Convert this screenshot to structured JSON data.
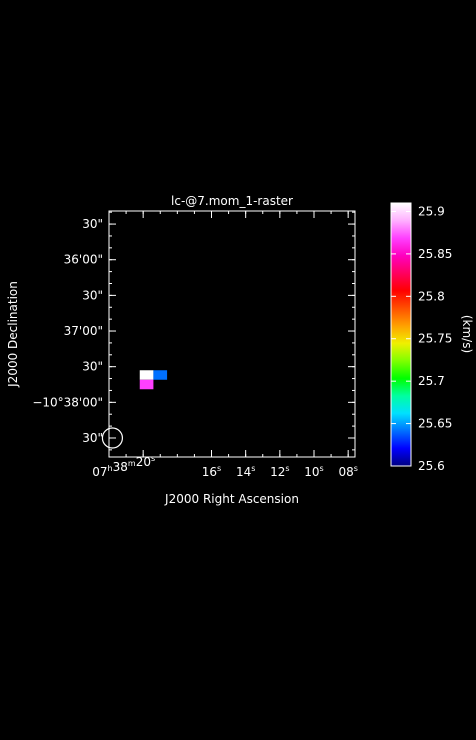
{
  "chart_data": {
    "type": "heatmap",
    "title": "lc-@7.mom_1-raster",
    "xlabel": "J2000 Right Ascension",
    "ylabel": "J2000 Declination",
    "x_ticks": [
      {
        "ra_sec": 20,
        "label_main": "07",
        "label_parts": [
          {
            "t": "h",
            "sup": true
          },
          {
            "t": "38",
            "sup": false
          },
          {
            "t": "m",
            "sup": true
          },
          {
            "t": "20",
            "sup": false
          },
          {
            "t": "s",
            "sup": true
          }
        ]
      },
      {
        "ra_sec": 16,
        "label_parts": [
          {
            "t": "16",
            "sup": false
          },
          {
            "t": "s",
            "sup": true
          }
        ]
      },
      {
        "ra_sec": 14,
        "label_parts": [
          {
            "t": "14",
            "sup": false
          },
          {
            "t": "s",
            "sup": true
          }
        ]
      },
      {
        "ra_sec": 12,
        "label_parts": [
          {
            "t": "12",
            "sup": false
          },
          {
            "t": "s",
            "sup": true
          }
        ]
      },
      {
        "ra_sec": 10,
        "label_parts": [
          {
            "t": "10",
            "sup": false
          },
          {
            "t": "s",
            "sup": true
          }
        ]
      },
      {
        "ra_sec": 8,
        "label_parts": [
          {
            "t": "08",
            "sup": false
          },
          {
            "t": "s",
            "sup": true
          }
        ]
      }
    ],
    "y_ticks": [
      {
        "dec_arcsec": 150,
        "label": "30\""
      },
      {
        "dec_arcsec": 120,
        "label": "36'00\""
      },
      {
        "dec_arcsec": 90,
        "label": "30\""
      },
      {
        "dec_arcsec": 60,
        "label": "37'00\""
      },
      {
        "dec_arcsec": 30,
        "label": "30\""
      },
      {
        "dec_arcsec": 0,
        "label": "−10°38'00\""
      },
      {
        "dec_arcsec": -30,
        "label": "30\""
      }
    ],
    "xlim_ra_sec": [
      22.0,
      7.6
    ],
    "ylim_dec_arcsec": [
      -46,
      161
    ],
    "pixels": [
      {
        "ra_sec": 19.8,
        "dec_arcsec": 23,
        "value": 25.91
      },
      {
        "ra_sec": 19.0,
        "dec_arcsec": 23,
        "value": 25.64
      },
      {
        "ra_sec": 19.8,
        "dec_arcsec": 15,
        "value": 25.86
      }
    ],
    "pixel_size": {
      "ra_sec": 0.8,
      "dec_arcsec": 8
    },
    "beam": {
      "ra_sec": 21.8,
      "dec_arcsec": -30
    },
    "colorbar": {
      "label": "(km/s)",
      "range": [
        25.6,
        25.91
      ],
      "ticks": [
        {
          "value": 25.9,
          "label": "25.9"
        },
        {
          "value": 25.85,
          "label": "25.85"
        },
        {
          "value": 25.8,
          "label": "25.8"
        },
        {
          "value": 25.75,
          "label": "25.75"
        },
        {
          "value": 25.7,
          "label": "25.7"
        },
        {
          "value": 25.65,
          "label": "25.65"
        },
        {
          "value": 25.6,
          "label": "25.6"
        }
      ],
      "colors": [
        "#ffffff",
        "#ffb0ff",
        "#ff40ff",
        "#ff00c0",
        "#ff0060",
        "#ff0000",
        "#ff5000",
        "#ffa000",
        "#f0f000",
        "#80ff00",
        "#00ff00",
        "#00ffa0",
        "#00e0ff",
        "#0070ff",
        "#0000ff",
        "#000080"
      ]
    }
  }
}
